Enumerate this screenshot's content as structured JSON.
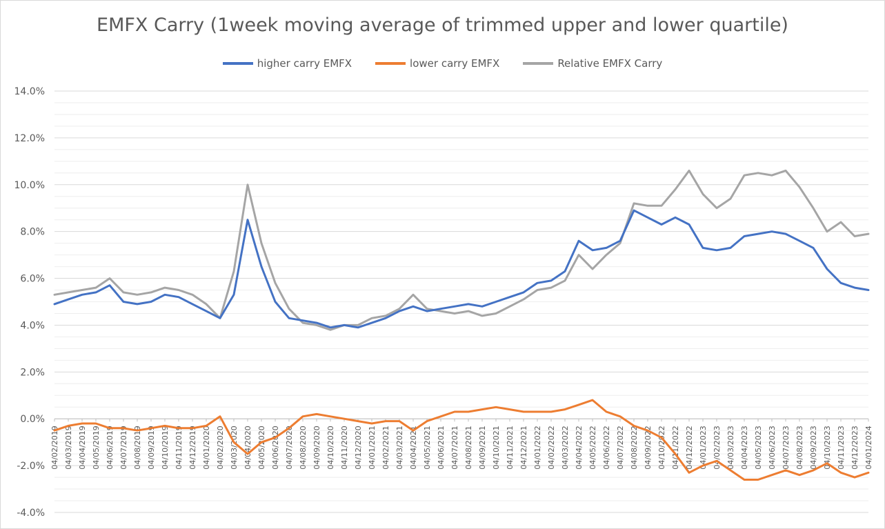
{
  "chart_data": {
    "type": "line",
    "title": "EMFX Carry (1week moving average of trimmed upper and lower quartile)",
    "xlabel": "",
    "ylabel": "",
    "ylim": [
      -4.0,
      14.0
    ],
    "y_ticks": [
      -4.0,
      -2.0,
      0.0,
      2.0,
      4.0,
      6.0,
      8.0,
      10.0,
      12.0,
      14.0
    ],
    "y_tick_labels": [
      "-4.0%",
      "-2.0%",
      "0.0%",
      "2.0%",
      "4.0%",
      "6.0%",
      "8.0%",
      "10.0%",
      "12.0%",
      "14.0%"
    ],
    "grid": true,
    "legend_position": "top",
    "x_tick_labels": [
      "04/02/2019",
      "04/03/2019",
      "04/04/2019",
      "04/05/2019",
      "04/06/2019",
      "04/07/2019",
      "04/08/2019",
      "04/09/2019",
      "04/10/2019",
      "04/11/2019",
      "04/12/2019",
      "04/01/2020",
      "04/02/2020",
      "04/03/2020",
      "04/04/2020",
      "04/05/2020",
      "04/06/2020",
      "04/07/2020",
      "04/08/2020",
      "04/09/2020",
      "04/10/2020",
      "04/11/2020",
      "04/12/2020",
      "04/01/2021",
      "04/02/2021",
      "04/03/2021",
      "04/04/2021",
      "04/05/2021",
      "04/06/2021",
      "04/07/2021",
      "04/08/2021",
      "04/09/2021",
      "04/10/2021",
      "04/11/2021",
      "04/12/2021",
      "04/01/2022",
      "04/02/2022",
      "04/03/2022",
      "04/04/2022",
      "04/05/2022",
      "04/06/2022",
      "04/07/2022",
      "04/08/2022",
      "04/09/2022",
      "04/10/2022",
      "04/11/2022",
      "04/12/2022",
      "04/01/2023",
      "04/02/2023",
      "04/03/2023",
      "04/04/2023",
      "04/05/2023",
      "04/06/2023",
      "04/07/2023",
      "04/08/2023",
      "04/09/2023",
      "04/10/2023",
      "04/11/2023",
      "04/12/2023",
      "04/01/2024"
    ],
    "series": [
      {
        "name": "higher carry EMFX",
        "color": "#4472C4",
        "values": [
          4.9,
          5.1,
          5.3,
          5.4,
          5.7,
          5.0,
          4.9,
          5.0,
          5.3,
          5.2,
          4.9,
          4.6,
          4.3,
          5.3,
          8.5,
          6.5,
          5.0,
          4.3,
          4.2,
          4.1,
          3.9,
          4.0,
          3.9,
          4.1,
          4.3,
          4.6,
          4.8,
          4.6,
          4.7,
          4.8,
          4.9,
          4.8,
          5.0,
          5.2,
          5.4,
          5.8,
          5.9,
          6.3,
          7.6,
          7.2,
          7.3,
          7.6,
          8.9,
          8.6,
          8.3,
          8.6,
          8.3,
          7.3,
          7.2,
          7.3,
          7.8,
          7.9,
          8.0,
          7.9,
          7.6,
          7.3,
          6.4,
          5.8,
          5.6,
          5.5
        ]
      },
      {
        "name": "lower carry EMFX",
        "color": "#ED7D31",
        "values": [
          -0.5,
          -0.3,
          -0.2,
          -0.2,
          -0.4,
          -0.4,
          -0.5,
          -0.4,
          -0.3,
          -0.4,
          -0.4,
          -0.3,
          0.1,
          -1.0,
          -1.5,
          -1.0,
          -0.8,
          -0.4,
          0.1,
          0.2,
          0.1,
          0.0,
          -0.1,
          -0.2,
          -0.1,
          -0.1,
          -0.5,
          -0.1,
          0.1,
          0.3,
          0.3,
          0.4,
          0.5,
          0.4,
          0.3,
          0.3,
          0.3,
          0.4,
          0.6,
          0.8,
          0.3,
          0.1,
          -0.3,
          -0.5,
          -0.8,
          -1.5,
          -2.3,
          -2.0,
          -1.8,
          -2.2,
          -2.6,
          -2.6,
          -2.4,
          -2.2,
          -2.4,
          -2.2,
          -1.9,
          -2.3,
          -2.5,
          -2.3
        ]
      },
      {
        "name": "Relative EMFX Carry",
        "color": "#A5A5A5",
        "values": [
          5.3,
          5.4,
          5.5,
          5.6,
          6.0,
          5.4,
          5.3,
          5.4,
          5.6,
          5.5,
          5.3,
          4.9,
          4.3,
          6.3,
          10.0,
          7.5,
          5.8,
          4.7,
          4.1,
          4.0,
          3.8,
          4.0,
          4.0,
          4.3,
          4.4,
          4.7,
          5.3,
          4.7,
          4.6,
          4.5,
          4.6,
          4.4,
          4.5,
          4.8,
          5.1,
          5.5,
          5.6,
          5.9,
          7.0,
          6.4,
          7.0,
          7.5,
          9.2,
          9.1,
          9.1,
          9.8,
          10.6,
          9.6,
          9.0,
          9.4,
          10.4,
          10.5,
          10.4,
          10.6,
          9.9,
          9.0,
          8.0,
          8.4,
          7.8,
          7.9
        ]
      }
    ]
  }
}
